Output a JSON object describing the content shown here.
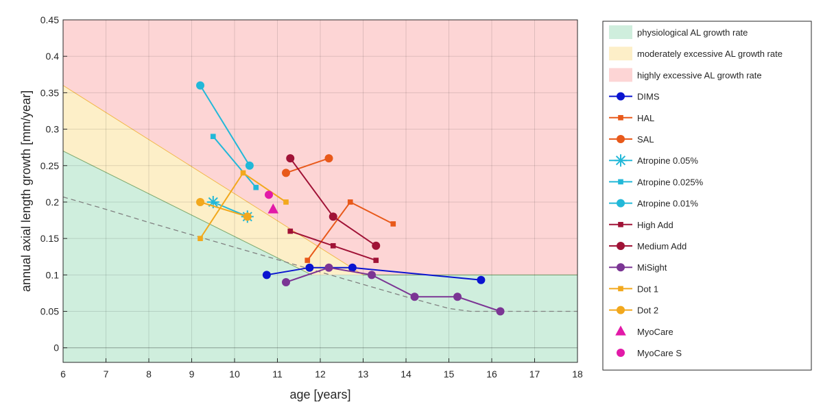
{
  "chart_data": {
    "type": "line",
    "xlabel": "age [years]",
    "ylabel": "annual axial length growth [mm/year]",
    "xlim": [
      6,
      18
    ],
    "ylim": [
      -0.02,
      0.45
    ],
    "xticks": [
      "6",
      "7",
      "8",
      "9",
      "10",
      "11",
      "12",
      "13",
      "14",
      "15",
      "16",
      "17",
      "18"
    ],
    "yticks": [
      "0",
      "0.05",
      "0.1",
      "0.15",
      "0.2",
      "0.25",
      "0.3",
      "0.35",
      "0.4",
      "0.45"
    ],
    "grid": true,
    "legend_position": "outside-right",
    "regions": [
      {
        "name": "physiological AL growth rate",
        "color": "#cfeedd",
        "polygon": [
          [
            6,
            -0.02
          ],
          [
            6,
            0.27
          ],
          [
            11.8,
            0.1
          ],
          [
            18,
            0.1
          ],
          [
            18,
            -0.02
          ]
        ]
      },
      {
        "name": "moderately excessive AL growth rate",
        "color": "#fdefc8",
        "polygon": [
          [
            6,
            0.27
          ],
          [
            6,
            0.36
          ],
          [
            13,
            0.1
          ],
          [
            11.8,
            0.1
          ]
        ]
      },
      {
        "name": "highly excessive AL growth rate",
        "color": "#fdd5d5",
        "polygon": [
          [
            6,
            0.36
          ],
          [
            6,
            0.45
          ],
          [
            18,
            0.45
          ],
          [
            18,
            0.1
          ],
          [
            13,
            0.1
          ]
        ]
      }
    ],
    "reference_curve": {
      "color": "#808080",
      "points": [
        [
          6,
          0.207
        ],
        [
          7,
          0.19
        ],
        [
          8,
          0.172
        ],
        [
          9,
          0.155
        ],
        [
          10,
          0.138
        ],
        [
          11,
          0.121
        ],
        [
          12,
          0.104
        ],
        [
          13,
          0.087
        ],
        [
          14,
          0.07
        ],
        [
          15,
          0.054
        ],
        [
          15.5,
          0.05
        ],
        [
          16,
          0.05
        ],
        [
          17,
          0.05
        ],
        [
          18,
          0.05
        ]
      ]
    },
    "series": [
      {
        "name": "DIMS",
        "color": "#0a14d0",
        "marker": "circle",
        "line": true,
        "points": [
          [
            10.75,
            0.1
          ],
          [
            11.75,
            0.11
          ],
          [
            12.75,
            0.11
          ],
          [
            15.75,
            0.093
          ]
        ]
      },
      {
        "name": "HAL",
        "color": "#e8591a",
        "marker": "square",
        "line": true,
        "points": [
          [
            11.7,
            0.12
          ],
          [
            12.7,
            0.2
          ],
          [
            13.7,
            0.17
          ]
        ]
      },
      {
        "name": "SAL",
        "color": "#e8591a",
        "marker": "circle",
        "line": true,
        "points": [
          [
            11.2,
            0.24
          ],
          [
            12.2,
            0.26
          ]
        ]
      },
      {
        "name": "Atropine 0.05%",
        "color": "#22b8d8",
        "marker": "asterisk",
        "line": true,
        "points": [
          [
            9.5,
            0.2
          ],
          [
            10.3,
            0.18
          ]
        ]
      },
      {
        "name": "Atropine 0.025%",
        "color": "#22b8d8",
        "marker": "square",
        "line": true,
        "points": [
          [
            9.5,
            0.29
          ],
          [
            10.5,
            0.22
          ]
        ]
      },
      {
        "name": "Atropine 0.01%",
        "color": "#22b8d8",
        "marker": "circle",
        "line": true,
        "points": [
          [
            9.2,
            0.36
          ],
          [
            10.35,
            0.25
          ]
        ]
      },
      {
        "name": "High Add",
        "color": "#a01236",
        "marker": "square",
        "line": true,
        "points": [
          [
            11.3,
            0.16
          ],
          [
            12.3,
            0.14
          ],
          [
            13.3,
            0.12
          ]
        ]
      },
      {
        "name": "Medium Add",
        "color": "#a01236",
        "marker": "circle",
        "line": true,
        "points": [
          [
            11.3,
            0.26
          ],
          [
            12.3,
            0.18
          ],
          [
            13.3,
            0.14
          ]
        ]
      },
      {
        "name": "MiSight",
        "color": "#7b3594",
        "marker": "circle",
        "line": true,
        "points": [
          [
            11.2,
            0.09
          ],
          [
            12.2,
            0.11
          ],
          [
            13.2,
            0.1
          ],
          [
            14.2,
            0.07
          ],
          [
            15.2,
            0.07
          ],
          [
            16.2,
            0.05
          ]
        ]
      },
      {
        "name": "Dot 1",
        "color": "#f2a81d",
        "marker": "square",
        "line": true,
        "points": [
          [
            9.2,
            0.15
          ],
          [
            10.2,
            0.24
          ],
          [
            11.2,
            0.2
          ]
        ]
      },
      {
        "name": "Dot 2",
        "color": "#f2a81d",
        "marker": "circle",
        "line": true,
        "points": [
          [
            9.2,
            0.2
          ],
          [
            10.3,
            0.18
          ]
        ]
      },
      {
        "name": "MyoCare",
        "color": "#e21aa8",
        "marker": "triangle",
        "line": false,
        "points": [
          [
            10.9,
            0.19
          ]
        ]
      },
      {
        "name": "MyoCare S",
        "color": "#e21aa8",
        "marker": "circle",
        "line": false,
        "points": [
          [
            10.8,
            0.21
          ]
        ]
      }
    ]
  }
}
